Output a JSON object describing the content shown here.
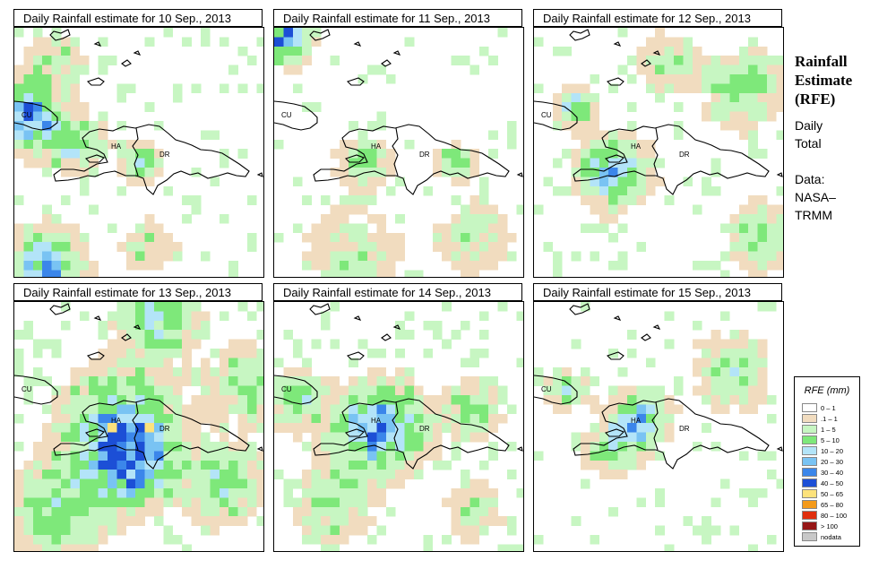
{
  "panels": [
    {
      "title": "Daily Rainfall estimate for  10 Sep., 2013"
    },
    {
      "title": "Daily Rainfall estimate for  11 Sep., 2013"
    },
    {
      "title": "Daily Rainfall estimate for  12 Sep., 2013"
    },
    {
      "title": "Daily Rainfall estimate for  13 Sep., 2013"
    },
    {
      "title": "Daily Rainfall estimate for  14 Sep., 2013"
    },
    {
      "title": "Daily Rainfall estimate for  15 Sep., 2013"
    }
  ],
  "map_labels": {
    "cuba": "CU",
    "haiti": "HA",
    "dominican_republic": "DR"
  },
  "side_panel": {
    "title_lines": [
      "Rainfall",
      "Estimate",
      "(RFE)"
    ],
    "daily_lines": [
      "Daily",
      "Total"
    ],
    "data_lines": [
      "Data:",
      "NASA–",
      "TRMM"
    ]
  },
  "legend": {
    "title": "RFE (mm)",
    "items": [
      {
        "label": "0 – 1",
        "color": "#ffffff"
      },
      {
        "label": ".1 – 1",
        "color": "#f1dcbf"
      },
      {
        "label": "1 – 5",
        "color": "#c7f6c2"
      },
      {
        "label": "5 – 10",
        "color": "#7ee87a"
      },
      {
        "label": "10 – 20",
        "color": "#b3e4f8"
      },
      {
        "label": "20 – 30",
        "color": "#79c3f3"
      },
      {
        "label": "30 – 40",
        "color": "#3b86ea"
      },
      {
        "label": "40 – 50",
        "color": "#1c4fd6"
      },
      {
        "label": "50 – 65",
        "color": "#fce27c"
      },
      {
        "label": "65 – 80",
        "color": "#f49a1a"
      },
      {
        "label": "80 – 100",
        "color": "#e02f0e"
      },
      {
        "label": "> 100",
        "color": "#961616"
      },
      {
        "label": "nodata",
        "color": "#c8c8c8"
      }
    ]
  }
}
